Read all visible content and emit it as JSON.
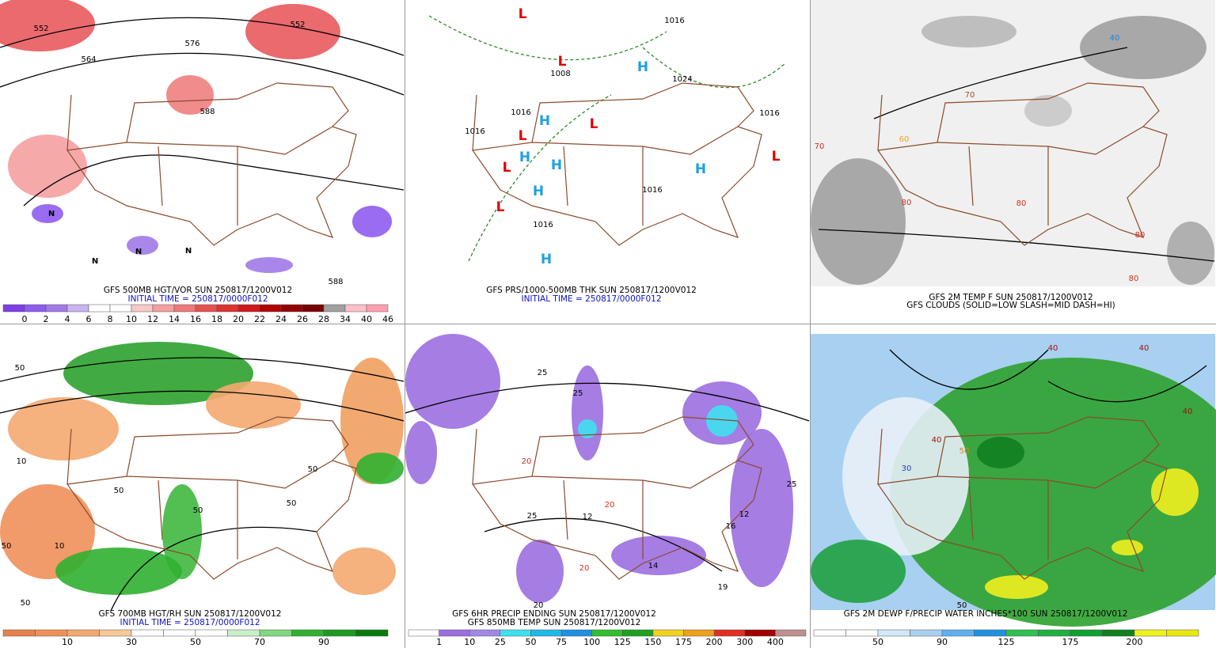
{
  "panels": [
    {
      "captions": [
        "GFS 500MB HGT/VOR SUN 250817/1200V012",
        "INITIAL TIME = 250817/0000F012"
      ],
      "colorbar": {
        "labels": [
          0,
          2,
          4,
          6,
          8,
          10,
          12,
          14,
          16,
          18,
          20,
          22,
          24,
          26,
          28,
          34,
          40,
          46
        ],
        "colors": [
          "#7d3fe6",
          "#8f5cf0",
          "#a07ae8",
          "#c8b4f0",
          "#ffffff",
          "#ffffff",
          "#f8c8c8",
          "#f4a0a0",
          "#f07878",
          "#e85050",
          "#e03030",
          "#d01818",
          "#b40000",
          "#960000",
          "#780000",
          "#a0a0a0",
          "#ffc0c8",
          "#ff9fb0"
        ]
      },
      "map_labels": [
        "552",
        "552",
        "564",
        "576",
        "588",
        "588",
        "N",
        "N",
        "N",
        "N"
      ]
    },
    {
      "captions": [
        "GFS PRS/1000-500MB THK SUN 250817/1200V012",
        "INITIAL TIME = 250817/0000F012"
      ],
      "map_labels": [
        "L",
        "L",
        "L",
        "L",
        "L",
        "L",
        "H",
        "H",
        "H",
        "H",
        "H",
        "H",
        "H",
        "L",
        "1016",
        "1008",
        "1024",
        "1016",
        "1016",
        "1016",
        "1016",
        "1016"
      ]
    },
    {
      "captions": [
        "GFS 2M TEMP F SUN 250817/1200V012",
        "GFS CLOUDS (SOLID=LOW SLASH=MID DASH=HI)"
      ],
      "map_labels": [
        "40",
        "70",
        "60",
        "80",
        "80",
        "70",
        "80",
        "80"
      ]
    },
    {
      "captions": [
        "GFS 700MB HGT/RH SUN 250817/1200V012",
        "INITIAL TIME = 250817/0000F012"
      ],
      "colorbar": {
        "labels": [
          10,
          30,
          50,
          70,
          90
        ],
        "colors": [
          "#e8804a",
          "#f09058",
          "#f4a870",
          "#f8c898",
          "#ffffff",
          "#ffffff",
          "#ffffff",
          "#c8f0c8",
          "#80d880",
          "#30b030",
          "#1e9a1e",
          "#0a7a0a"
        ]
      },
      "map_labels": [
        "50",
        "10",
        "50",
        "50",
        "50",
        "10",
        "50",
        "50",
        "50"
      ]
    },
    {
      "captions": [
        "GFS 6HR PRECIP ENDING SUN 250817/1200V012",
        "GFS 850MB TEMP SUN 250817/1200V012"
      ],
      "colorbar": {
        "labels": [
          1,
          10,
          25,
          50,
          75,
          100,
          125,
          150,
          175,
          200,
          300,
          400
        ],
        "colors": [
          "#ffffff",
          "#9b6fe0",
          "#a088e8",
          "#40e0f0",
          "#20b8e8",
          "#2090e0",
          "#30c030",
          "#20a020",
          "#f0d020",
          "#f0a020",
          "#e03020",
          "#a00000",
          "#c09090"
        ]
      },
      "map_labels": [
        "25",
        "25",
        "20",
        "25",
        "12",
        "20",
        "14",
        "20",
        "19",
        "16",
        "12",
        "25",
        "20"
      ]
    },
    {
      "captions": [
        "GFS 2M DEWP F/PRECIP WATER INCHES*100 SUN 250817/1200V012"
      ],
      "colorbar": {
        "labels": [
          50,
          90,
          125,
          175,
          200
        ],
        "colors": [
          "#ffffff",
          "#ffffff",
          "#d0e8f8",
          "#a8d0f0",
          "#60b0f0",
          "#2090e0",
          "#30c050",
          "#20b040",
          "#10a030",
          "#108020",
          "#f0f020",
          "#e8e810"
        ]
      },
      "map_labels": [
        "40",
        "40",
        "40",
        "50",
        "30",
        "40",
        "50"
      ]
    }
  ]
}
